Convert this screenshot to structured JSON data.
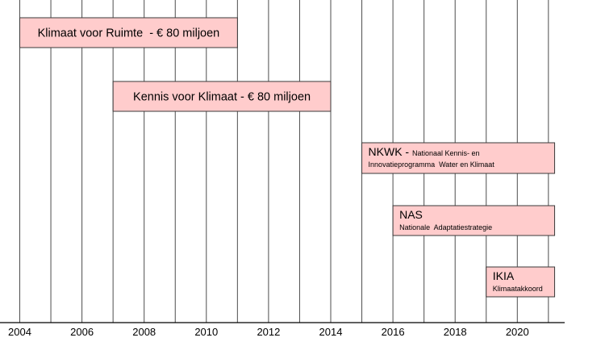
{
  "chart_data": {
    "type": "bar",
    "title": "",
    "xlabel": "",
    "ylabel": "",
    "xlim": [
      2004,
      2021.2
    ],
    "x_ticks": [
      "2004",
      "2006",
      "2008",
      "2010",
      "2012",
      "2014",
      "2016",
      "2018",
      "2020"
    ],
    "x_tick_values": [
      2004,
      2006,
      2008,
      2010,
      2012,
      2014,
      2016,
      2018,
      2020
    ],
    "grid_years": [
      2004,
      2005,
      2006,
      2007,
      2008,
      2009,
      2010,
      2011,
      2012,
      2013,
      2014,
      2015,
      2016,
      2017,
      2018,
      2019,
      2020,
      2021
    ],
    "grid": true,
    "bar_color": "#ffcccc",
    "bar_border_color": "#3a3a3a",
    "programs": [
      {
        "title": "Klimaat voor Ruimte  - € 80 miljoen",
        "subtitle": "",
        "start": 2004,
        "end": 2011,
        "layout": "center"
      },
      {
        "title": "Kennis voor Klimaat - € 80 miljoen",
        "subtitle": "",
        "start": 2007,
        "end": 2014,
        "layout": "center"
      },
      {
        "title": "NKWK - ",
        "title_small": "Nationaal Kennis- en",
        "subtitle": "Innovatieprogramma  Water en Klimaat",
        "start": 2015,
        "end": 2021.2,
        "layout": "stacked"
      },
      {
        "title": "NAS",
        "title_small": "",
        "subtitle": "Nationale  Adaptatiestrategie",
        "start": 2016,
        "end": 2021.2,
        "layout": "stacked"
      },
      {
        "title": "IKIA",
        "title_small": "",
        "subtitle": "Klimaatakkoord",
        "start": 2019,
        "end": 2021.2,
        "layout": "stacked"
      }
    ]
  }
}
